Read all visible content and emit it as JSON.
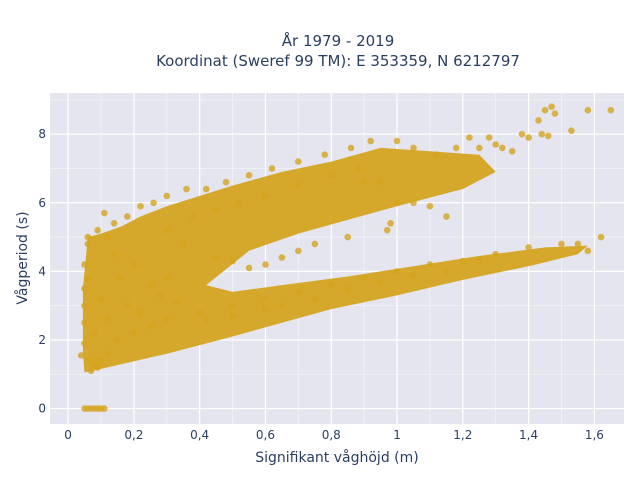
{
  "chart_data": {
    "type": "scatter",
    "title_line1": "År 1979 - 2019",
    "title_line2": "Koordinat (Sweref 99 TM): E 353359, N 6212797",
    "xlabel": "Signifikant våghöjd (m)",
    "ylabel": "Vågperiod (s)",
    "xlim": [
      -0.055,
      1.69
    ],
    "ylim": [
      -0.45,
      9.2
    ],
    "x_ticks": [
      {
        "value": 0,
        "label": "0"
      },
      {
        "value": 0.2,
        "label": "0,2"
      },
      {
        "value": 0.4,
        "label": "0,4"
      },
      {
        "value": 0.6,
        "label": "0,6"
      },
      {
        "value": 0.8,
        "label": "0,8"
      },
      {
        "value": 1,
        "label": "1"
      },
      {
        "value": 1.2,
        "label": "1,2"
      },
      {
        "value": 1.4,
        "label": "1,4"
      },
      {
        "value": 1.6,
        "label": "1,6"
      }
    ],
    "y_ticks": [
      {
        "value": 0,
        "label": "0"
      },
      {
        "value": 2,
        "label": "2"
      },
      {
        "value": 4,
        "label": "4"
      },
      {
        "value": 6,
        "label": "6"
      },
      {
        "value": 8,
        "label": "8"
      }
    ],
    "grid": true,
    "marker_color": "#d4a420",
    "plot_bg": "#e5e5ef",
    "series": [
      {
        "points": [
          [
            0.05,
            0
          ],
          [
            0.06,
            0
          ],
          [
            0.07,
            0
          ],
          [
            0.08,
            0
          ],
          [
            0.09,
            0
          ],
          [
            0.1,
            0
          ],
          [
            0.11,
            0
          ],
          [
            0.04,
            1.55
          ],
          [
            0.05,
            1.9
          ],
          [
            0.05,
            2.5
          ],
          [
            0.05,
            3.0
          ],
          [
            0.05,
            3.5
          ],
          [
            0.05,
            4.2
          ],
          [
            0.06,
            4.8
          ],
          [
            0.06,
            5.0
          ],
          [
            0.09,
            5.2
          ],
          [
            0.11,
            5.7
          ],
          [
            0.14,
            5.4
          ],
          [
            0.18,
            5.6
          ],
          [
            0.22,
            5.9
          ],
          [
            0.26,
            6.0
          ],
          [
            0.3,
            6.2
          ],
          [
            0.36,
            6.4
          ],
          [
            0.42,
            6.4
          ],
          [
            0.48,
            6.6
          ],
          [
            0.55,
            6.8
          ],
          [
            0.62,
            7.0
          ],
          [
            0.7,
            7.2
          ],
          [
            0.78,
            7.4
          ],
          [
            0.86,
            7.6
          ],
          [
            0.92,
            7.8
          ],
          [
            1.0,
            7.8
          ],
          [
            1.05,
            7.6
          ],
          [
            1.12,
            7.4
          ],
          [
            1.18,
            7.6
          ],
          [
            1.22,
            7.9
          ],
          [
            1.25,
            7.6
          ],
          [
            1.28,
            7.9
          ],
          [
            1.3,
            7.7
          ],
          [
            1.32,
            7.6
          ],
          [
            1.35,
            7.5
          ],
          [
            0.9,
            6.6
          ],
          [
            0.95,
            6.6
          ],
          [
            1.0,
            6.0
          ],
          [
            1.05,
            6.0
          ],
          [
            1.1,
            5.9
          ],
          [
            1.15,
            5.6
          ],
          [
            0.98,
            5.4
          ],
          [
            0.97,
            5.2
          ],
          [
            0.85,
            5.0
          ],
          [
            0.75,
            4.8
          ],
          [
            0.7,
            4.6
          ],
          [
            0.65,
            4.4
          ],
          [
            0.6,
            4.2
          ],
          [
            0.55,
            4.1
          ],
          [
            0.5,
            4.3
          ],
          [
            0.45,
            4.4
          ],
          [
            0.35,
            4.8
          ],
          [
            0.3,
            3.8
          ],
          [
            0.25,
            3.6
          ],
          [
            0.2,
            4.2
          ],
          [
            0.16,
            3.8
          ],
          [
            0.14,
            4.5
          ],
          [
            0.12,
            5.0
          ],
          [
            0.6,
            3.2
          ],
          [
            0.7,
            3.4
          ],
          [
            0.8,
            3.6
          ],
          [
            0.9,
            3.8
          ],
          [
            1.0,
            4.0
          ],
          [
            1.1,
            4.2
          ],
          [
            1.2,
            4.3
          ],
          [
            1.3,
            4.5
          ],
          [
            1.4,
            4.7
          ],
          [
            1.5,
            4.8
          ],
          [
            1.55,
            4.8
          ],
          [
            1.58,
            4.6
          ],
          [
            1.62,
            5.0
          ],
          [
            0.65,
            3.0
          ],
          [
            0.75,
            3.2
          ],
          [
            0.85,
            3.5
          ],
          [
            0.95,
            3.7
          ],
          [
            1.05,
            3.9
          ],
          [
            1.15,
            4.0
          ],
          [
            1.25,
            4.3
          ],
          [
            0.4,
            2.8
          ],
          [
            0.5,
            3.0
          ],
          [
            0.3,
            2.6
          ],
          [
            0.25,
            2.4
          ],
          [
            0.2,
            2.2
          ],
          [
            0.15,
            2.0
          ],
          [
            0.12,
            1.6
          ],
          [
            0.1,
            1.4
          ],
          [
            0.08,
            1.3
          ],
          [
            0.07,
            1.1
          ],
          [
            0.06,
            1.4
          ],
          [
            0.09,
            1.2
          ],
          [
            0.5,
            2.7
          ],
          [
            0.6,
            2.9
          ],
          [
            0.42,
            2.6
          ],
          [
            0.3,
            5.2
          ],
          [
            0.38,
            5.6
          ],
          [
            0.45,
            5.8
          ],
          [
            0.52,
            6.0
          ],
          [
            0.6,
            6.2
          ],
          [
            0.7,
            6.5
          ],
          [
            0.8,
            6.8
          ],
          [
            0.88,
            7.0
          ],
          [
            0.18,
            3.0
          ],
          [
            0.22,
            2.8
          ],
          [
            0.28,
            3.3
          ],
          [
            0.33,
            3.1
          ],
          [
            0.12,
            2.6
          ],
          [
            0.1,
            3.2
          ],
          [
            0.08,
            2.2
          ],
          [
            0.06,
            3.8
          ],
          [
            1.43,
            8.4
          ],
          [
            1.45,
            8.7
          ],
          [
            1.47,
            8.8
          ],
          [
            1.44,
            8.0
          ],
          [
            1.48,
            8.6
          ],
          [
            1.53,
            8.1
          ],
          [
            1.58,
            8.7
          ],
          [
            1.65,
            8.7
          ],
          [
            1.46,
            7.95
          ],
          [
            1.4,
            7.9
          ],
          [
            1.38,
            8.0
          ]
        ]
      }
    ]
  }
}
